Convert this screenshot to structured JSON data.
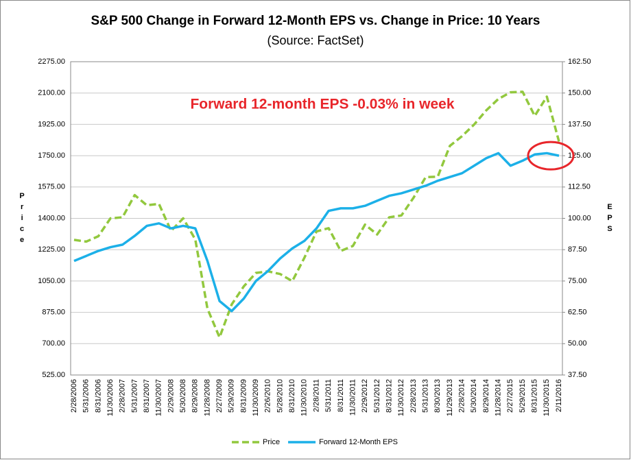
{
  "chart_data": {
    "type": "line",
    "title": "S&P 500 Change in Forward 12-Month EPS vs. Change in Price: 10 Years",
    "subtitle": "(Source: FactSet)",
    "annotation": "Forward 12-month EPS -0.03% in week",
    "y_label": "Price",
    "y2_label": "EPS",
    "categories": [
      "2/28/2006",
      "5/31/2006",
      "8/31/2006",
      "11/30/2006",
      "2/28/2007",
      "5/31/2007",
      "8/31/2007",
      "11/30/2007",
      "2/29/2008",
      "5/30/2008",
      "8/29/2008",
      "11/28/2008",
      "2/27/2009",
      "5/29/2009",
      "8/31/2009",
      "11/30/2009",
      "2/26/2010",
      "5/28/2010",
      "8/31/2010",
      "11/30/2010",
      "2/28/2011",
      "5/31/2011",
      "8/31/2011",
      "11/30/2011",
      "2/29/2012",
      "5/31/2012",
      "8/31/2012",
      "11/30/2012",
      "2/28/2013",
      "5/31/2013",
      "8/30/2013",
      "11/29/2013",
      "2/28/2014",
      "5/30/2014",
      "8/29/2014",
      "11/28/2014",
      "2/27/2015",
      "5/29/2015",
      "8/31/2015",
      "11/30/2015",
      "2/11/2016"
    ],
    "series": [
      {
        "name": "Price",
        "color": "#92c83e",
        "dashed": true,
        "axis": "y",
        "values": [
          1280,
          1270,
          1300,
          1400,
          1406,
          1530,
          1473,
          1481,
          1330,
          1400,
          1282,
          896,
          735,
          919,
          1020,
          1095,
          1104,
          1089,
          1049,
          1180,
          1327,
          1345,
          1218,
          1246,
          1365,
          1310,
          1406,
          1416,
          1515,
          1630,
          1633,
          1805,
          1859,
          1924,
          2003,
          2067,
          2104,
          2107,
          1972,
          2080,
          1829
        ]
      },
      {
        "name": "Forward 12-Month EPS",
        "color": "#1cb0e8",
        "dashed": false,
        "axis": "y2",
        "values": [
          83,
          85,
          87,
          88.5,
          89.5,
          93,
          97,
          98,
          96,
          97,
          96,
          83,
          67,
          63,
          68,
          75,
          79,
          84,
          88,
          91,
          96,
          103,
          104,
          104,
          105,
          107,
          109,
          110,
          111.5,
          113,
          115,
          116.5,
          118,
          121,
          124,
          126,
          121,
          123,
          125.5,
          126,
          125
        ]
      }
    ],
    "ylim": [
      525,
      2275
    ],
    "yticks": [
      {
        "value": 525,
        "label": "525.00"
      },
      {
        "value": 700,
        "label": "700.00"
      },
      {
        "value": 875,
        "label": "875.00"
      },
      {
        "value": 1050,
        "label": "1050.00"
      },
      {
        "value": 1225,
        "label": "1225.00"
      },
      {
        "value": 1400,
        "label": "1400.00"
      },
      {
        "value": 1575,
        "label": "1575.00"
      },
      {
        "value": 1750,
        "label": "1750.00"
      },
      {
        "value": 1925,
        "label": "1925.00"
      },
      {
        "value": 2100,
        "label": "2100.00"
      },
      {
        "value": 2275,
        "label": "2275.00"
      }
    ],
    "y2lim": [
      37.5,
      162.5
    ],
    "y2ticks": [
      {
        "value": 37.5,
        "label": "37.50"
      },
      {
        "value": 50,
        "label": "50.00"
      },
      {
        "value": 62.5,
        "label": "62.50"
      },
      {
        "value": 75,
        "label": "75.00"
      },
      {
        "value": 87.5,
        "label": "87.50"
      },
      {
        "value": 100,
        "label": "100.00"
      },
      {
        "value": 112.5,
        "label": "112.50"
      },
      {
        "value": 125,
        "label": "125.00"
      },
      {
        "value": 137.5,
        "label": "137.50"
      },
      {
        "value": 150,
        "label": "150.00"
      },
      {
        "value": 162.5,
        "label": "162.50"
      }
    ],
    "grid": true,
    "legend": "bottom"
  }
}
